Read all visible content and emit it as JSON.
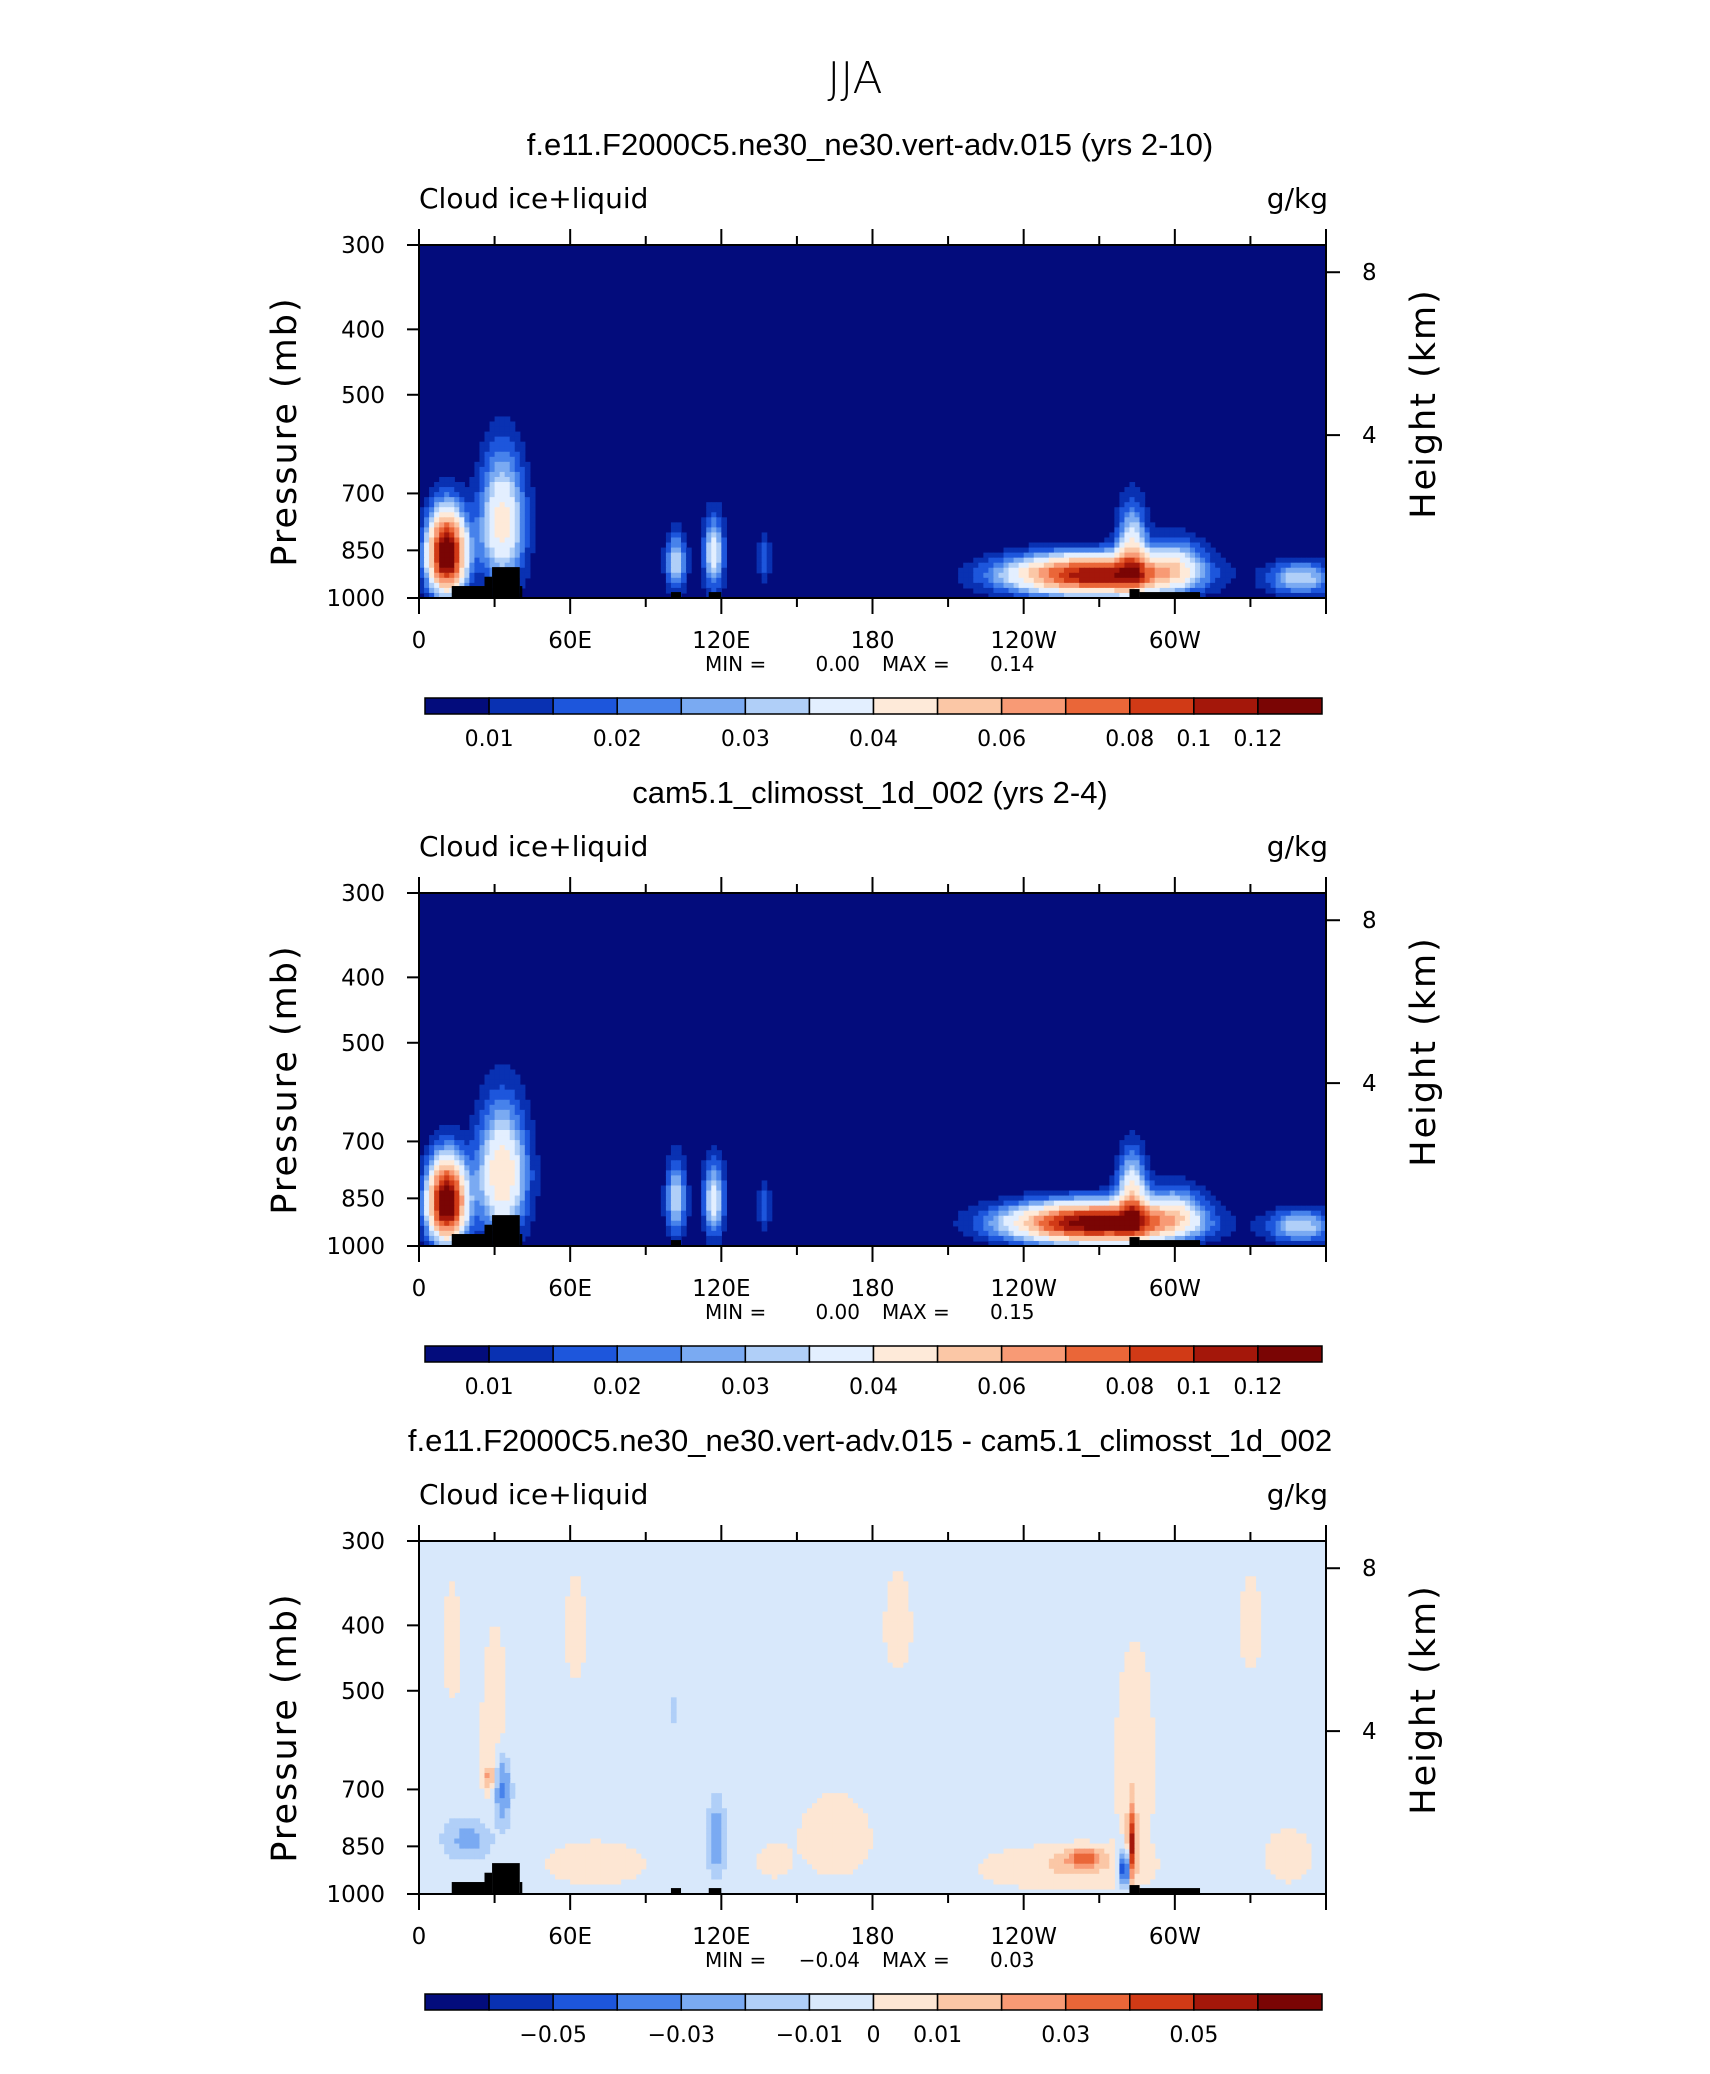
{
  "figure_title": "JJA",
  "colors": {
    "cmap12": [
      "#030c7c",
      "#0931b2",
      "#1d56dc",
      "#4782eb",
      "#7aaaf2",
      "#b0cff8",
      "#e3efff",
      "#feead9",
      "#fbc7a6",
      "#f89a75",
      "#ea6638",
      "#d13a16",
      "#a4170a",
      "#7a0504"
    ],
    "cmap_diff": [
      "#030c7c",
      "#0931b2",
      "#1d56dc",
      "#4782eb",
      "#7aaaf2",
      "#b0cff8",
      "#d8e8fb",
      "#fde6d3",
      "#fbc7a6",
      "#f89a75",
      "#ea6638",
      "#d13a16",
      "#a4170a",
      "#7a0504"
    ],
    "land": "#000000",
    "background_mean": "#030c7c",
    "background_diff": "#d8e8fb"
  },
  "chart_data": [
    {
      "type": "heatmap",
      "title": "f.e11.F2000C5.ne30_ne30.vert-adv.015 (yrs 2-10)",
      "left_label": "Cloud ice+liquid",
      "right_label": "g/kg",
      "ylabel": "Pressure (mb)",
      "ylabel_right": "Height (km)",
      "y_ticks": [
        "300",
        "400",
        "500",
        "700",
        "850",
        "1000"
      ],
      "y_ticks_right": [
        "8",
        "4"
      ],
      "x_ticks": [
        "0",
        "60E",
        "120E",
        "180",
        "120W",
        "60W"
      ],
      "stats": {
        "min_label": "MIN =",
        "min": "0.00",
        "max_label": "MAX =",
        "max": "0.14"
      },
      "colorbar_labels": [
        "0.01",
        "0.02",
        "0.03",
        "0.04",
        "0.06",
        "0.08",
        "0.1",
        "0.12"
      ],
      "colorbar_kind": "mean",
      "features": [
        {
          "lon": 11,
          "p_top": 720,
          "p_bot": 1000,
          "width_deg": 9,
          "peak": 0.12
        },
        {
          "lon": 33,
          "p_top": 570,
          "p_bot": 980,
          "width_deg": 11,
          "peak": 0.045
        },
        {
          "lon": 102,
          "p_top": 780,
          "p_bot": 990,
          "width_deg": 5,
          "peak": 0.03
        },
        {
          "lon": 117,
          "p_top": 730,
          "p_bot": 990,
          "width_deg": 5,
          "peak": 0.035
        },
        {
          "lon": 137,
          "p_top": 780,
          "p_bot": 960,
          "width_deg": 3,
          "peak": 0.015
        },
        {
          "lon": 268,
          "p_top": 850,
          "p_bot": 1000,
          "width_deg": 40,
          "peak": 0.1
        },
        {
          "lon": 283,
          "p_top": 700,
          "p_bot": 1000,
          "width_deg": 7,
          "peak": 0.04
        },
        {
          "lon": 300,
          "p_top": 790,
          "p_bot": 980,
          "width_deg": 14,
          "peak": 0.025
        },
        {
          "lon": 350,
          "p_top": 870,
          "p_bot": 1000,
          "width_deg": 16,
          "peak": 0.03
        }
      ],
      "land_blocks": [
        {
          "lon0": 13,
          "lon1": 26,
          "p_top": 960
        },
        {
          "lon0": 26,
          "lon1": 29,
          "p_top": 930
        },
        {
          "lon0": 29,
          "lon1": 40,
          "p_top": 900
        },
        {
          "lon0": 40,
          "lon1": 41,
          "p_top": 960
        },
        {
          "lon0": 100,
          "lon1": 104,
          "p_top": 980
        },
        {
          "lon0": 115,
          "lon1": 120,
          "p_top": 980
        },
        {
          "lon0": 282,
          "lon1": 286,
          "p_top": 970
        },
        {
          "lon0": 286,
          "lon1": 310,
          "p_top": 980
        }
      ]
    },
    {
      "type": "heatmap",
      "title": "cam5.1_climosst_1d_002 (yrs 2-4)",
      "left_label": "Cloud ice+liquid",
      "right_label": "g/kg",
      "ylabel": "Pressure (mb)",
      "ylabel_right": "Height (km)",
      "y_ticks": [
        "300",
        "400",
        "500",
        "700",
        "850",
        "1000"
      ],
      "y_ticks_right": [
        "8",
        "4"
      ],
      "x_ticks": [
        "0",
        "60E",
        "120E",
        "180",
        "120W",
        "60W"
      ],
      "stats": {
        "min_label": "MIN =",
        "min": "0.00",
        "max_label": "MAX =",
        "max": "0.15"
      },
      "colorbar_labels": [
        "0.01",
        "0.02",
        "0.03",
        "0.04",
        "0.06",
        "0.08",
        "0.1",
        "0.12"
      ],
      "colorbar_kind": "mean",
      "features": [
        {
          "lon": 11,
          "p_top": 720,
          "p_bot": 1000,
          "width_deg": 9,
          "peak": 0.12
        },
        {
          "lon": 33,
          "p_top": 580,
          "p_bot": 990,
          "width_deg": 12,
          "peak": 0.05
        },
        {
          "lon": 102,
          "p_top": 720,
          "p_bot": 990,
          "width_deg": 5,
          "peak": 0.03
        },
        {
          "lon": 117,
          "p_top": 720,
          "p_bot": 990,
          "width_deg": 5,
          "peak": 0.035
        },
        {
          "lon": 137,
          "p_top": 780,
          "p_bot": 960,
          "width_deg": 3,
          "peak": 0.015
        },
        {
          "lon": 268,
          "p_top": 850,
          "p_bot": 1000,
          "width_deg": 40,
          "peak": 0.11
        },
        {
          "lon": 283,
          "p_top": 700,
          "p_bot": 1000,
          "width_deg": 7,
          "peak": 0.045
        },
        {
          "lon": 300,
          "p_top": 790,
          "p_bot": 980,
          "width_deg": 14,
          "peak": 0.025
        },
        {
          "lon": 350,
          "p_top": 870,
          "p_bot": 1000,
          "width_deg": 16,
          "peak": 0.03
        }
      ],
      "land_blocks": [
        {
          "lon0": 13,
          "lon1": 26,
          "p_top": 960
        },
        {
          "lon0": 26,
          "lon1": 29,
          "p_top": 930
        },
        {
          "lon0": 29,
          "lon1": 40,
          "p_top": 900
        },
        {
          "lon0": 40,
          "lon1": 41,
          "p_top": 960
        },
        {
          "lon0": 100,
          "lon1": 104,
          "p_top": 980
        },
        {
          "lon0": 282,
          "lon1": 286,
          "p_top": 970
        },
        {
          "lon0": 286,
          "lon1": 310,
          "p_top": 980
        }
      ]
    },
    {
      "type": "heatmap",
      "title": "f.e11.F2000C5.ne30_ne30.vert-adv.015 - cam5.1_climosst_1d_002",
      "left_label": "Cloud ice+liquid",
      "right_label": "g/kg",
      "ylabel": "Pressure (mb)",
      "ylabel_right": "Height (km)",
      "y_ticks": [
        "300",
        "400",
        "500",
        "700",
        "850",
        "1000"
      ],
      "y_ticks_right": [
        "8",
        "4"
      ],
      "x_ticks": [
        "0",
        "60E",
        "120E",
        "180",
        "120W",
        "60W"
      ],
      "stats": {
        "min_label": "MIN =",
        "min": "−0.04",
        "max_label": "MAX =",
        "max": "0.03"
      },
      "colorbar_labels": [
        "−0.05",
        "−0.03",
        "−0.01",
        "0",
        "0.01",
        "0.03",
        "0.05"
      ],
      "colorbar_kind": "diff",
      "features": [
        {
          "lon": 13,
          "p_top": 300,
          "p_bot": 560,
          "width_deg": 5,
          "peak": 0.004
        },
        {
          "lon": 20,
          "p_top": 760,
          "p_bot": 900,
          "width_deg": 12,
          "peak": -0.008
        },
        {
          "lon": 30,
          "p_top": 300,
          "p_bot": 860,
          "width_deg": 8,
          "peak": 0.004
        },
        {
          "lon": 33,
          "p_top": 600,
          "p_bot": 800,
          "width_deg": 4,
          "peak": -0.015
        },
        {
          "lon": 28,
          "p_top": 640,
          "p_bot": 700,
          "width_deg": 3,
          "peak": 0.012
        },
        {
          "lon": 62,
          "p_top": 300,
          "p_bot": 520,
          "width_deg": 6,
          "peak": 0.004
        },
        {
          "lon": 70,
          "p_top": 800,
          "p_bot": 1000,
          "width_deg": 30,
          "peak": 0.004
        },
        {
          "lon": 101,
          "p_top": 510,
          "p_bot": 560,
          "width_deg": 2,
          "peak": -0.006
        },
        {
          "lon": 118,
          "p_top": 700,
          "p_bot": 960,
          "width_deg": 4,
          "peak": -0.01
        },
        {
          "lon": 140,
          "p_top": 830,
          "p_bot": 960,
          "width_deg": 8,
          "peak": 0.004
        },
        {
          "lon": 165,
          "p_top": 650,
          "p_bot": 1000,
          "width_deg": 22,
          "peak": 0.004
        },
        {
          "lon": 190,
          "p_top": 300,
          "p_bot": 500,
          "width_deg": 8,
          "peak": 0.004
        },
        {
          "lon": 255,
          "p_top": 830,
          "p_bot": 1000,
          "width_deg": 40,
          "peak": 0.006
        },
        {
          "lon": 264,
          "p_top": 850,
          "p_bot": 920,
          "width_deg": 9,
          "peak": 0.02
        },
        {
          "lon": 280,
          "p_top": 850,
          "p_bot": 980,
          "width_deg": 3,
          "peak": -0.03
        },
        {
          "lon": 284,
          "p_top": 300,
          "p_bot": 1000,
          "width_deg": 12,
          "peak": 0.004
        },
        {
          "lon": 283,
          "p_top": 720,
          "p_bot": 980,
          "width_deg": 2,
          "peak": 0.03
        },
        {
          "lon": 330,
          "p_top": 300,
          "p_bot": 500,
          "width_deg": 6,
          "peak": 0.004
        },
        {
          "lon": 345,
          "p_top": 760,
          "p_bot": 1000,
          "width_deg": 14,
          "peak": 0.004
        }
      ],
      "land_blocks": [
        {
          "lon0": 13,
          "lon1": 26,
          "p_top": 960
        },
        {
          "lon0": 26,
          "lon1": 29,
          "p_top": 930
        },
        {
          "lon0": 29,
          "lon1": 40,
          "p_top": 900
        },
        {
          "lon0": 40,
          "lon1": 41,
          "p_top": 960
        },
        {
          "lon0": 100,
          "lon1": 104,
          "p_top": 980
        },
        {
          "lon0": 115,
          "lon1": 120,
          "p_top": 980
        },
        {
          "lon0": 282,
          "lon1": 286,
          "p_top": 970
        },
        {
          "lon0": 286,
          "lon1": 310,
          "p_top": 980
        }
      ]
    }
  ]
}
